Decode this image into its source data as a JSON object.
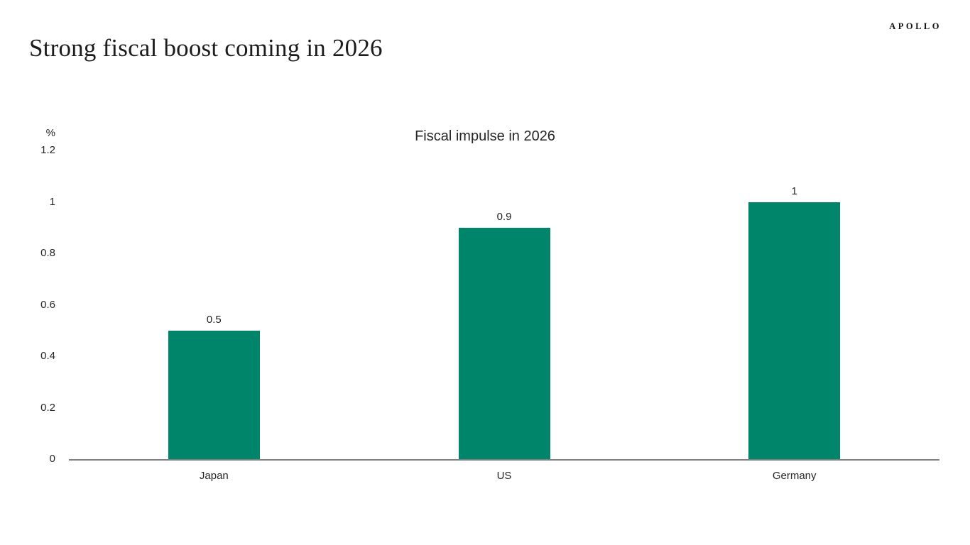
{
  "header": {
    "title": "Strong fiscal boost coming in 2026",
    "logo": "APOLLO"
  },
  "chart_data": {
    "type": "bar",
    "title": "Fiscal impulse in 2026",
    "unit": "%",
    "categories": [
      "Japan",
      "US",
      "Germany"
    ],
    "values": [
      0.5,
      0.9,
      1
    ],
    "value_labels": [
      "0.5",
      "0.9",
      "1"
    ],
    "ylim": [
      0,
      1.2
    ],
    "yticks": [
      0,
      0.2,
      0.4,
      0.6,
      0.8,
      1,
      1.2
    ],
    "ytick_labels": [
      "0",
      "0.2",
      "0.4",
      "0.6",
      "0.8",
      "1",
      "1.2"
    ],
    "bar_color": "#00856A",
    "axis_color": "#7F7F7F",
    "grid": false,
    "legend": false
  }
}
